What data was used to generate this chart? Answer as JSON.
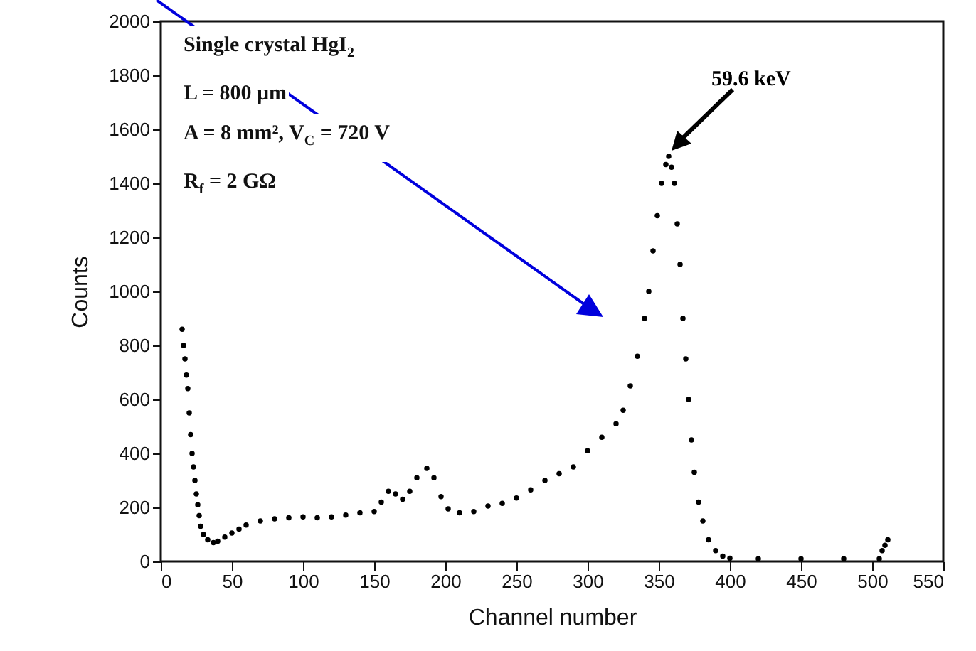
{
  "chart_data": {
    "type": "scatter",
    "xlabel": "Channel number",
    "ylabel": "Counts",
    "xlim": [
      0,
      550
    ],
    "ylim": [
      0,
      2000
    ],
    "xticks": [
      0,
      50,
      100,
      150,
      200,
      250,
      300,
      350,
      400,
      450,
      500,
      550
    ],
    "yticks": [
      0,
      200,
      400,
      600,
      800,
      1000,
      1200,
      1400,
      1600,
      1800,
      2000
    ],
    "grid": false,
    "marker": "circle",
    "annotations": [
      "Single crystal HgI$_{2}$",
      "L = 800 μm",
      "A = 8 mm², V$_{C}$ = 720 V",
      "R$_{f}$ = 2 GΩ",
      "59.6 keV"
    ],
    "series": [
      {
        "color": "#000000",
        "x": [
          15,
          16,
          17,
          18,
          19,
          20,
          21,
          22,
          23,
          24,
          25,
          26,
          27,
          28,
          30,
          33,
          37,
          40,
          45,
          50,
          55,
          60,
          70,
          80,
          90,
          100,
          110,
          120,
          130,
          140,
          150,
          155,
          160,
          165,
          170,
          175,
          180,
          187,
          192,
          197,
          202,
          210,
          220,
          230,
          240,
          250,
          260,
          270,
          280,
          290,
          300,
          310,
          320,
          325,
          330,
          335,
          340,
          343,
          346,
          349,
          352,
          355,
          357,
          359,
          361,
          363,
          365,
          367,
          369,
          371,
          373,
          375,
          378,
          381,
          385,
          390,
          395,
          400,
          420,
          450,
          480,
          505,
          507,
          509,
          511
        ],
        "values": [
          860,
          800,
          750,
          690,
          640,
          550,
          470,
          400,
          350,
          300,
          250,
          210,
          170,
          130,
          100,
          80,
          70,
          75,
          90,
          105,
          120,
          135,
          150,
          158,
          162,
          165,
          162,
          165,
          172,
          180,
          185,
          220,
          260,
          250,
          230,
          260,
          310,
          345,
          310,
          240,
          195,
          180,
          185,
          205,
          215,
          235,
          265,
          300,
          325,
          350,
          410,
          460,
          510,
          560,
          650,
          760,
          900,
          1000,
          1150,
          1280,
          1400,
          1470,
          1500,
          1460,
          1400,
          1250,
          1100,
          900,
          750,
          600,
          450,
          330,
          220,
          150,
          80,
          40,
          20,
          12,
          10,
          10,
          10,
          10,
          40,
          60,
          80
        ]
      }
    ]
  }
}
